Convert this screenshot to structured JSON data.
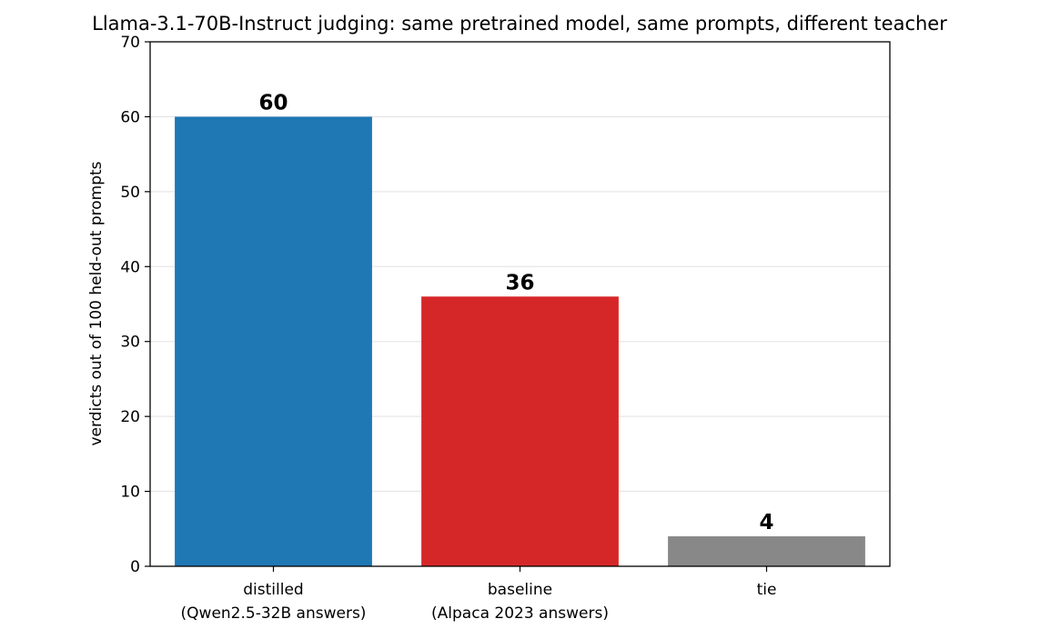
{
  "chart_data": {
    "type": "bar",
    "title": "Llama-3.1-70B-Instruct judging: same pretrained model, same prompts, different teacher",
    "xlabel": "",
    "ylabel": "verdicts out of 100 held-out prompts",
    "ylim": [
      0,
      70
    ],
    "yticks": [
      0,
      10,
      20,
      30,
      40,
      50,
      60,
      70
    ],
    "grid": "y",
    "categories": [
      [
        "distilled",
        "(Qwen2.5-32B answers)"
      ],
      [
        "baseline",
        "(Alpaca 2023 answers)"
      ],
      [
        "tie"
      ]
    ],
    "values": [
      60,
      36,
      4
    ],
    "data_labels": [
      "60",
      "36",
      "4"
    ],
    "colors": [
      "#1f77b4",
      "#d62728",
      "#888888"
    ]
  }
}
